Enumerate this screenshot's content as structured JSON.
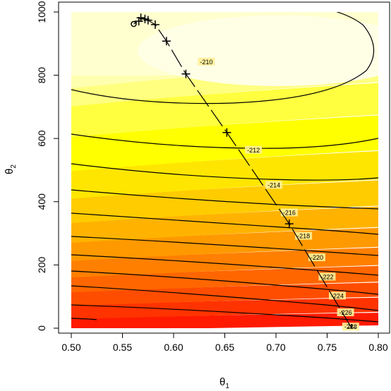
{
  "chart_data": {
    "type": "contour",
    "title": "",
    "xlabel": "θ",
    "xlabel_sub": "1",
    "ylabel": "θ",
    "ylabel_sub": "2",
    "xlim": [
      0.5,
      0.8
    ],
    "ylim": [
      0,
      1000
    ],
    "x_ticks": [
      "0.50",
      "0.55",
      "0.60",
      "0.65",
      "0.70",
      "0.75",
      "0.80"
    ],
    "y_ticks": [
      "0",
      "200",
      "400",
      "600",
      "800",
      "1000"
    ],
    "grid": false,
    "color_scale": {
      "low": "#ff0000",
      "mid": "#ffff00",
      "high": "#ffffe0",
      "levels_low_to_high": [
        "#ff1a00",
        "#ff3300",
        "#ff4d00",
        "#ff6600",
        "#ff8000",
        "#ff9900",
        "#ffb300",
        "#ffcc00",
        "#ffe600",
        "#ffff00",
        "#ffff40",
        "#ffff80",
        "#ffffb0",
        "#ffffd0"
      ]
    },
    "contour_labels": [
      {
        "label": "-210",
        "theta1": 0.632,
        "theta2": 842
      },
      {
        "label": "-212",
        "theta1": 0.678,
        "theta2": 563
      },
      {
        "label": "-214",
        "theta1": 0.698,
        "theta2": 452
      },
      {
        "label": "-216",
        "theta1": 0.713,
        "theta2": 365
      },
      {
        "label": "-218",
        "theta1": 0.727,
        "theta2": 291
      },
      {
        "label": "-220",
        "theta1": 0.74,
        "theta2": 223
      },
      {
        "label": "-222",
        "theta1": 0.75,
        "theta2": 162
      },
      {
        "label": "-224",
        "theta1": 0.76,
        "theta2": 102
      },
      {
        "label": "-226",
        "theta1": 0.768,
        "theta2": 49
      },
      {
        "label": "-228",
        "theta1": 0.773,
        "theta2": 4
      }
    ],
    "path_points": [
      {
        "theta1": 0.774,
        "theta2": 0
      },
      {
        "theta1": 0.713,
        "theta2": 330
      },
      {
        "theta1": 0.652,
        "theta2": 619
      },
      {
        "theta1": 0.612,
        "theta2": 804
      },
      {
        "theta1": 0.593,
        "theta2": 908
      },
      {
        "theta1": 0.582,
        "theta2": 960
      },
      {
        "theta1": 0.575,
        "theta2": 974
      },
      {
        "theta1": 0.572,
        "theta2": 978
      },
      {
        "theta1": 0.568,
        "theta2": 982
      },
      {
        "theta1": 0.566,
        "theta2": 971
      },
      {
        "theta1": 0.561,
        "theta2": 962
      }
    ]
  }
}
